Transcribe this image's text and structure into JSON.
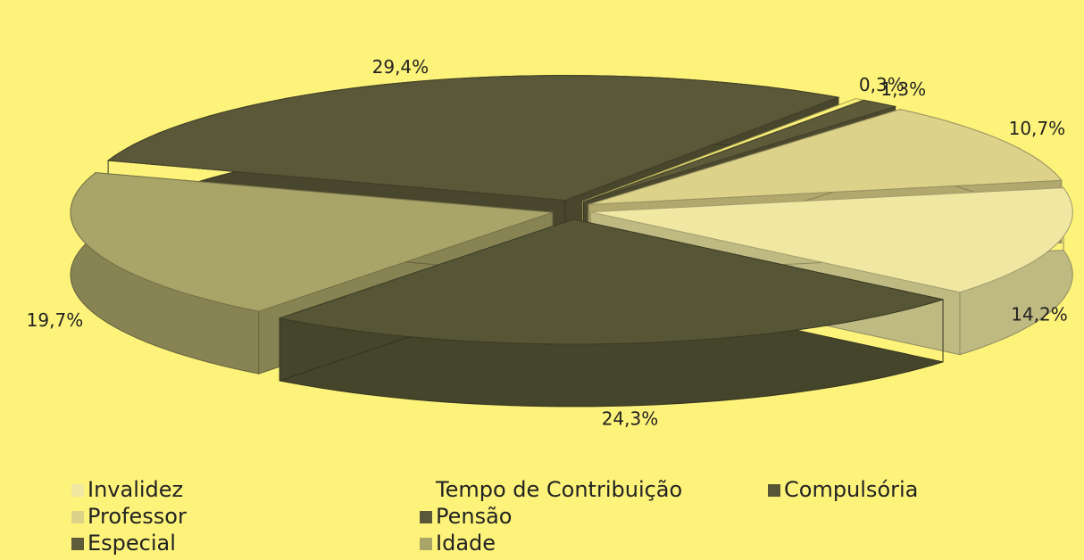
{
  "chart_data": {
    "type": "pie3d",
    "categories": [
      "Invalidez",
      "Professor",
      "Especial",
      "Tempo de Contribuição",
      "Pensão",
      "Idade",
      "Compulsória"
    ],
    "values": [
      14.2,
      10.7,
      1.3,
      0.3,
      29.4,
      19.7,
      24.3
    ],
    "value_labels": [
      "14,2%",
      "10,7%",
      "1,3%",
      "0,3%",
      "29,4%",
      "19,7%",
      "24,3%"
    ],
    "colors": [
      "#efe7a2",
      "#ddd28a",
      "#5e5b3a",
      "#fdf37a",
      "#5a5838",
      "#a9a468",
      "#565636"
    ],
    "legend": "bottom"
  }
}
